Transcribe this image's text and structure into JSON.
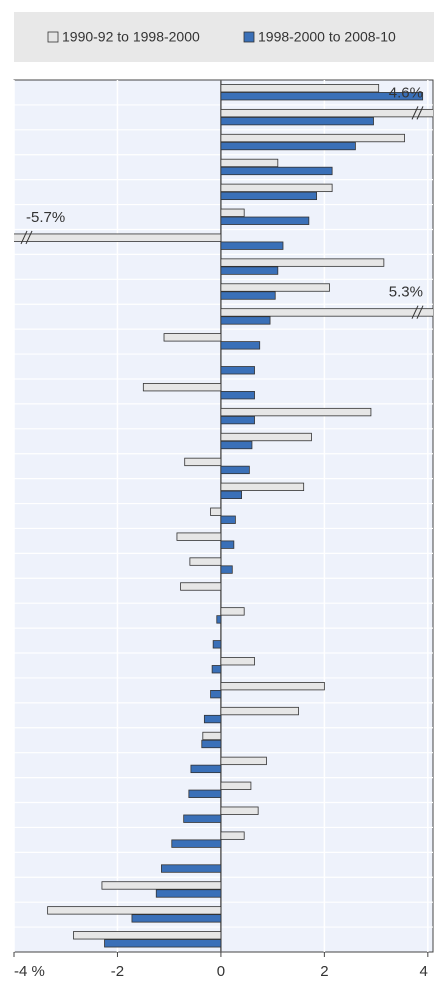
{
  "chart_data": {
    "type": "bar",
    "orientation": "horizontal",
    "categories": [
      null,
      null,
      null,
      null,
      null,
      null,
      null,
      null,
      null,
      null,
      null,
      null,
      null,
      null,
      null,
      null,
      null,
      null,
      null,
      null,
      null,
      null,
      null,
      null,
      null,
      null,
      null,
      null,
      null,
      null,
      null,
      null,
      null,
      null,
      null
    ],
    "series": [
      {
        "name": "1990-92 to 1998-2000",
        "color": "#e6e6e6",
        "values": [
          3.05,
          4.6,
          3.55,
          1.1,
          2.15,
          0.45,
          -5.7,
          3.15,
          2.1,
          5.3,
          -1.1,
          null,
          -1.5,
          2.9,
          1.75,
          -0.7,
          1.6,
          -0.2,
          -0.85,
          -0.6,
          -0.78,
          0.45,
          null,
          0.65,
          2.0,
          1.5,
          -0.35,
          0.88,
          0.58,
          0.72,
          0.45,
          null,
          -2.3,
          -3.35,
          -2.85
        ],
        "value_labels": [
          null,
          "4.6%",
          null,
          null,
          null,
          null,
          "-5.7%",
          null,
          null,
          "5.3%",
          null,
          null,
          null,
          null,
          null,
          null,
          null,
          null,
          null,
          null,
          null,
          null,
          null,
          null,
          null,
          null,
          null,
          null,
          null,
          null,
          null,
          null,
          null,
          null,
          null
        ]
      },
      {
        "name": "1998-2000 to 2008-10",
        "color": "#3a70b8",
        "values": [
          3.9,
          2.95,
          2.6,
          2.15,
          1.85,
          1.7,
          1.2,
          1.1,
          1.05,
          0.95,
          0.75,
          0.65,
          0.65,
          0.65,
          0.6,
          0.55,
          0.4,
          0.28,
          0.25,
          0.22,
          null,
          -0.08,
          -0.15,
          -0.17,
          -0.2,
          -0.32,
          -0.37,
          -0.58,
          -0.62,
          -0.72,
          -0.95,
          -1.15,
          -1.25,
          -1.72,
          -2.25
        ]
      }
    ],
    "xlim": [
      -4,
      4.1
    ],
    "xticks": [
      {
        "value": -4,
        "label": "-4 %"
      },
      -2,
      0,
      2,
      4
    ],
    "grid": true
  }
}
